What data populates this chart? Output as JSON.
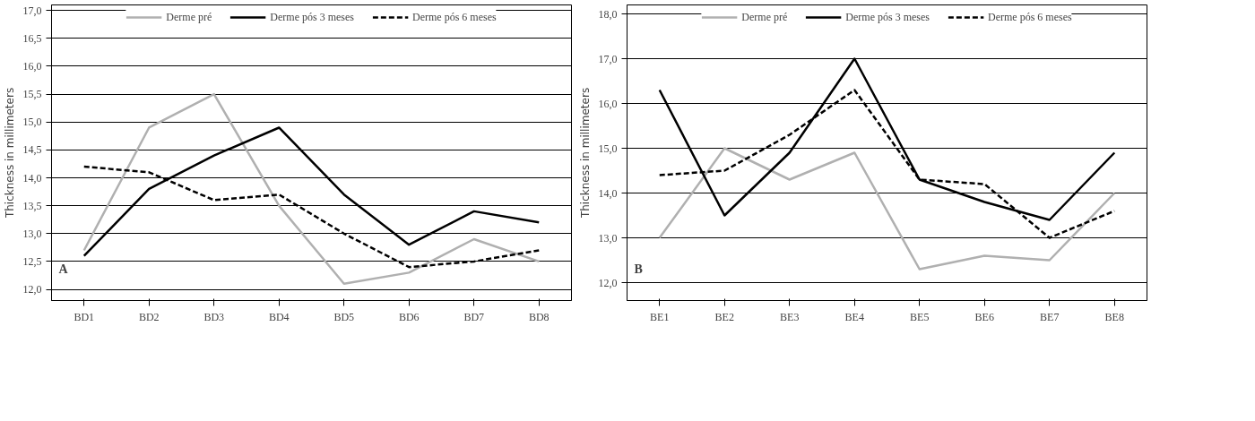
{
  "chart_data": [
    {
      "type": "line",
      "ylabel": "Thickness in millimeters",
      "annotations": [
        "A"
      ],
      "categories": [
        "BD1",
        "BD2",
        "BD3",
        "BD4",
        "BD5",
        "BD6",
        "BD7",
        "BD8"
      ],
      "series": [
        {
          "name": "Derme pré",
          "color": "#b0b0b0",
          "line_style": "solid",
          "values": [
            12.7,
            14.9,
            15.5,
            13.5,
            12.1,
            12.3,
            12.9,
            12.5
          ]
        },
        {
          "name": "Derme pós 3 meses",
          "color": "#000000",
          "line_style": "solid",
          "values": [
            12.6,
            13.8,
            14.4,
            14.9,
            13.7,
            12.8,
            13.4,
            13.2
          ]
        },
        {
          "name": "Derme pós 6 meses",
          "color": "#000000",
          "line_style": "dashed",
          "values": [
            14.2,
            14.1,
            13.6,
            13.7,
            13.0,
            12.4,
            12.5,
            12.7
          ]
        }
      ],
      "ylim": [
        11.8,
        17.1
      ],
      "yticks": [
        {
          "value": 12,
          "label": "12,0"
        },
        {
          "value": 12.5,
          "label": "12,5"
        },
        {
          "value": 13,
          "label": "13,0"
        },
        {
          "value": 13.5,
          "label": "13,5"
        },
        {
          "value": 14,
          "label": "14,0"
        },
        {
          "value": 14.5,
          "label": "14,5"
        },
        {
          "value": 15,
          "label": "15,0"
        },
        {
          "value": 15.5,
          "label": "15,5"
        },
        {
          "value": 16,
          "label": "16,0"
        },
        {
          "value": 16.5,
          "label": "16,5"
        },
        {
          "value": 17,
          "label": "17,0"
        }
      ],
      "grid": "y",
      "legend": "top"
    },
    {
      "type": "line",
      "ylabel": "Thickness in millimeters",
      "annotations": [
        "B"
      ],
      "categories": [
        "BE1",
        "BE2",
        "BE3",
        "BE4",
        "BE5",
        "BE6",
        "BE7",
        "BE8"
      ],
      "series": [
        {
          "name": "Derme pré",
          "color": "#b0b0b0",
          "line_style": "solid",
          "values": [
            13.0,
            15.0,
            14.3,
            14.9,
            12.3,
            12.6,
            12.5,
            14.0
          ]
        },
        {
          "name": "Derme pós 3 meses",
          "color": "#000000",
          "line_style": "solid",
          "values": [
            16.3,
            13.5,
            14.9,
            17.0,
            14.3,
            13.8,
            13.4,
            14.9
          ]
        },
        {
          "name": "Derme pós 6 meses",
          "color": "#000000",
          "line_style": "dashed",
          "values": [
            14.4,
            14.5,
            15.3,
            16.3,
            14.3,
            14.2,
            13.0,
            13.6
          ]
        }
      ],
      "ylim": [
        11.6,
        18.2
      ],
      "yticks": [
        {
          "value": 12,
          "label": "12,0"
        },
        {
          "value": 13,
          "label": "13,0"
        },
        {
          "value": 14,
          "label": "14,0"
        },
        {
          "value": 15,
          "label": "15,0"
        },
        {
          "value": 16,
          "label": "16,0"
        },
        {
          "value": 17,
          "label": "17,0"
        },
        {
          "value": 18,
          "label": "18,0"
        }
      ],
      "grid": "y",
      "legend": "top"
    }
  ]
}
